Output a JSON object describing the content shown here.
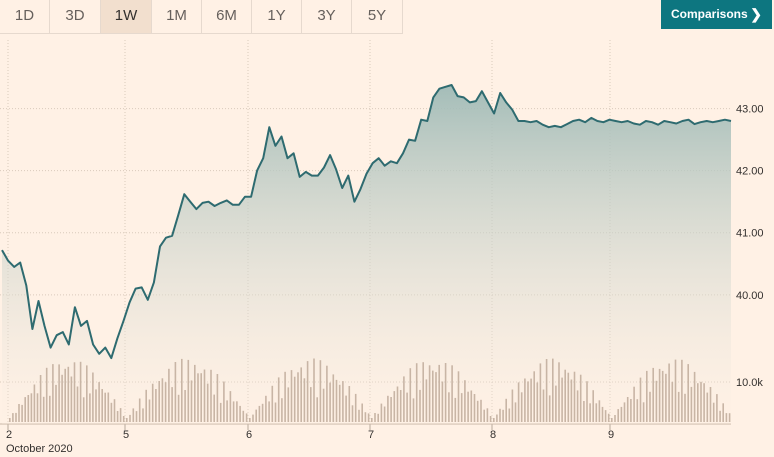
{
  "toolbar": {
    "ranges": [
      "1D",
      "3D",
      "1W",
      "1M",
      "6M",
      "1Y",
      "3Y",
      "5Y"
    ],
    "active_range": "1W",
    "comparisons_label": "Comparisons",
    "comparisons_icon": "chevron-right-icon"
  },
  "colors": {
    "background": "#fff1e5",
    "line": "#2e6b70",
    "area_top": "#9fbab6",
    "volume": "#c8b5a5",
    "accent": "#0d7680"
  },
  "chart_data": {
    "type": "line",
    "x_tick_labels": [
      "2",
      "5",
      "6",
      "7",
      "8",
      "9"
    ],
    "x_sublabel": "October 2020",
    "y_tick_labels": [
      "43.00",
      "42.00",
      "41.00",
      "40.00"
    ],
    "ylim": [
      38.95,
      43.75
    ],
    "grid": true,
    "series": [
      {
        "x": [
          0,
          0.5,
          1,
          1.5,
          2,
          2.5,
          3,
          3.5,
          4,
          4.5,
          5,
          5.5,
          6,
          6.5,
          7,
          7.5,
          8,
          8.5,
          9,
          9.5,
          10,
          10.5,
          11,
          11.5,
          12,
          12.5,
          13,
          13.5,
          14,
          14.5,
          15,
          15.5,
          16,
          16.5,
          17,
          17.5,
          18,
          18.5,
          19,
          19.5,
          20,
          20.5,
          21,
          21.5,
          22,
          22.5,
          23,
          23.5,
          24,
          24.5,
          25,
          25.5,
          26,
          26.5,
          27,
          27.5,
          28,
          28.5,
          29,
          29.5,
          30,
          30.5,
          31,
          31.5,
          32,
          32.5,
          33,
          33.5,
          34,
          34.5,
          35,
          35.5,
          36,
          36.5,
          37,
          37.5,
          38,
          38.5,
          39,
          39.5,
          40,
          40.5,
          41,
          41.5,
          42,
          42.5,
          43,
          43.5,
          44,
          44.5,
          45,
          45.5,
          46,
          46.5,
          47,
          47.5,
          48,
          48.5,
          49,
          49.5,
          50,
          50.5,
          51,
          51.5,
          52,
          52.5,
          53,
          53.5,
          54,
          54.5,
          55,
          55.5,
          56,
          56.5,
          57,
          57.5,
          58,
          58.5,
          59,
          59.5,
          60
        ],
        "y": [
          40.72,
          40.55,
          40.45,
          40.52,
          40.15,
          39.45,
          39.9,
          39.5,
          39.15,
          39.35,
          39.4,
          39.2,
          39.8,
          39.5,
          39.58,
          39.2,
          39.05,
          39.15,
          38.98,
          39.3,
          39.58,
          39.88,
          40.1,
          40.12,
          39.92,
          40.2,
          40.78,
          40.92,
          40.95,
          41.28,
          41.62,
          41.5,
          41.38,
          41.48,
          41.5,
          41.43,
          41.48,
          41.52,
          41.45,
          41.45,
          41.58,
          41.58,
          42.0,
          42.2,
          42.7,
          42.4,
          42.55,
          42.2,
          42.28,
          41.9,
          41.98,
          41.92,
          41.92,
          42.05,
          42.25,
          42.02,
          41.72,
          41.92,
          41.5,
          41.7,
          41.95,
          42.12,
          42.2,
          42.08,
          42.15,
          42.12,
          42.28,
          42.5,
          42.48,
          42.82,
          42.8,
          43.18,
          43.32,
          43.35,
          43.38,
          43.2,
          43.18,
          43.1,
          43.12,
          43.28,
          43.1,
          42.92,
          43.25,
          43.1,
          42.98,
          42.8,
          42.8,
          42.78,
          42.8,
          42.74,
          42.7,
          42.72,
          42.7,
          42.75,
          42.8,
          42.82,
          42.78,
          42.85,
          42.8,
          42.78,
          42.82,
          42.8,
          42.78,
          42.8,
          42.76,
          42.74,
          42.8,
          42.78,
          42.74,
          42.8,
          42.78,
          42.76,
          42.8,
          42.82,
          42.75,
          42.78,
          42.8,
          42.78,
          42.8,
          42.82,
          42.8
        ]
      }
    ],
    "volume_tick_label": "10.0k",
    "volume_ylim": [
      0,
      15000
    ]
  }
}
